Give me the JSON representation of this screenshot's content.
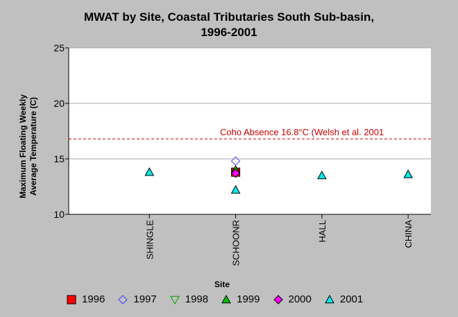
{
  "chart_data": {
    "type": "scatter",
    "title_lines": [
      "MWAT by Site, Coastal Tributaries South Sub-basin,",
      "1996-2001"
    ],
    "ylabel_lines": [
      "Maximum Floating Weekly",
      "Average Temperature (C)"
    ],
    "xlabel": "Site",
    "categories": [
      "SHINGLE",
      "SCHOONR",
      "HALL",
      "CHINA"
    ],
    "ylim": [
      10,
      25
    ],
    "yticks": [
      10,
      15,
      20,
      25
    ],
    "grid": true,
    "legend_position": "bottom",
    "reference_line": {
      "value": 16.8,
      "label": "Coho Absence 16.8°C (Welsh et al. 2001",
      "color": "#cc0000"
    },
    "series": [
      {
        "name": "1996",
        "marker": "square",
        "color": "#ff0000",
        "points": [
          {
            "x": "SCHOONR",
            "y": 13.8
          }
        ]
      },
      {
        "name": "1997",
        "marker": "diamond-open",
        "color": "#4040ff",
        "points": [
          {
            "x": "SCHOONR",
            "y": 14.8
          }
        ]
      },
      {
        "name": "1998",
        "marker": "triangle-down-open",
        "color": "#00a000",
        "points": []
      },
      {
        "name": "1999",
        "marker": "triangle-up",
        "color": "#00c000",
        "points": [
          {
            "x": "SCHOONR",
            "y": 14.0
          }
        ]
      },
      {
        "name": "2000",
        "marker": "diamond",
        "color": "#ff00ff",
        "points": [
          {
            "x": "SCHOONR",
            "y": 13.7
          }
        ]
      },
      {
        "name": "2001",
        "marker": "triangle-up",
        "color": "#00e8e8",
        "points": [
          {
            "x": "SHINGLE",
            "y": 13.8
          },
          {
            "x": "SCHOONR",
            "y": 12.2
          },
          {
            "x": "HALL",
            "y": 13.5
          },
          {
            "x": "CHINA",
            "y": 13.6
          }
        ]
      }
    ]
  }
}
